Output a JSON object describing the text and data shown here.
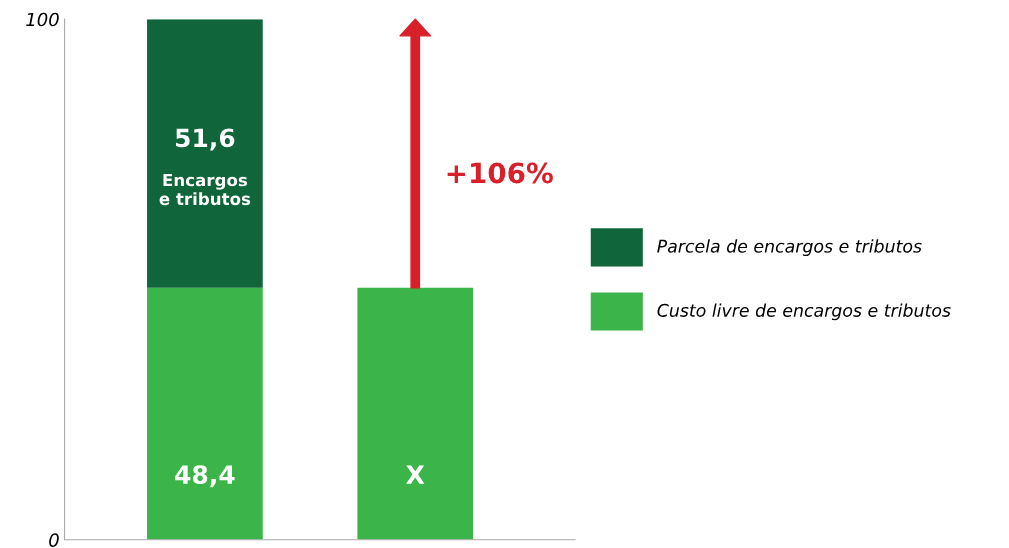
{
  "chart_data": {
    "type": "bar",
    "stacked": true,
    "categories": [
      null,
      null
    ],
    "series": [
      {
        "name": "Custo livre de encargos e tributos",
        "color": "#3bb44a",
        "values": [
          48.4,
          48.4
        ],
        "value_labels": [
          "48,4",
          "X"
        ]
      },
      {
        "name": "Parcela de encargos e tributos",
        "color": "#10653a",
        "values": [
          51.6,
          null
        ],
        "value_labels": [
          "51,6",
          null
        ]
      }
    ],
    "ylim": [
      0,
      100
    ],
    "yticks": [
      0,
      100
    ],
    "grid": false,
    "legend": "right",
    "annotations": [
      "Encargos\ne tributos",
      "+106%"
    ]
  }
}
